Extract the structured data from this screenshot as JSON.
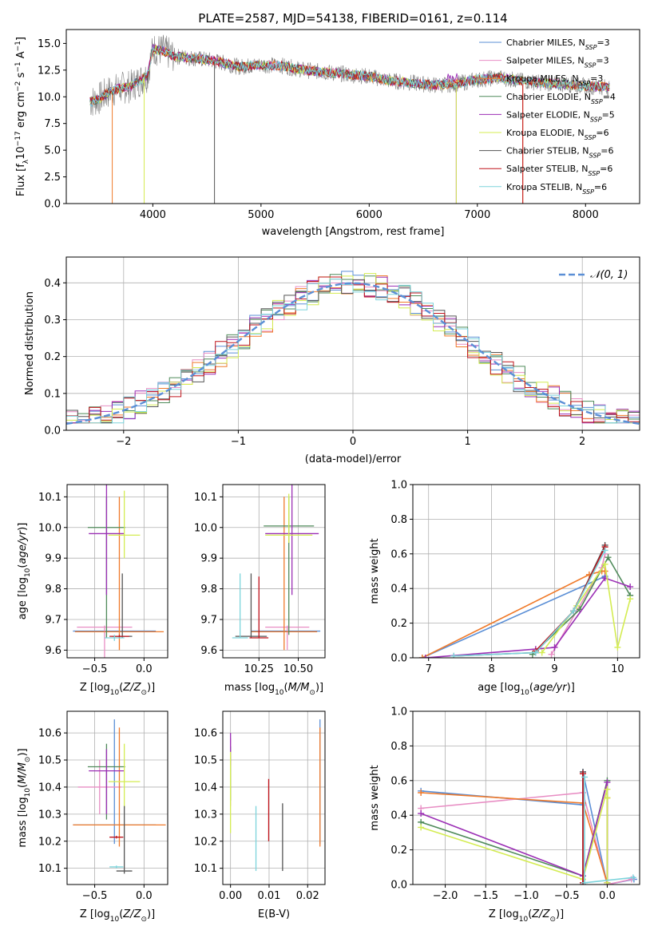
{
  "figure": {
    "title": "PLATE=2587, MJD=54138, FIBERID=0161, z=0.114"
  },
  "series_styles": [
    {
      "name": "Chabrier MILES",
      "nssp": "3",
      "color": "#5b8fd6"
    },
    {
      "name": "Salpeter MILES",
      "nssp": "3",
      "color": "#e88ec4"
    },
    {
      "name": "Kroupa MILES",
      "nssp": "3",
      "color": "#f07a2a"
    },
    {
      "name": "Chabrier ELODIE",
      "nssp": "4",
      "color": "#4f8a5a"
    },
    {
      "name": "Salpeter ELODIE",
      "nssp": "5",
      "color": "#9b2fb5"
    },
    {
      "name": "Kroupa ELODIE",
      "nssp": "6",
      "color": "#d4ec52"
    },
    {
      "name": "Chabrier STELIB",
      "nssp": "6",
      "color": "#555555"
    },
    {
      "name": "Salpeter STELIB",
      "nssp": "6",
      "color": "#c0141c"
    },
    {
      "name": "Kroupa STELIB",
      "nssp": "6",
      "color": "#7dd4dc"
    }
  ],
  "chart_data": [
    {
      "id": "spectrum",
      "type": "line",
      "xlabel": "wavelength [Angstrom, rest frame]",
      "ylabel": "Flux [f",
      "ylabel_unit": "10",
      "xlim": [
        3200,
        8500
      ],
      "ylim": [
        0,
        16.3
      ],
      "xticks": [
        "4000",
        "5000",
        "6000",
        "7000",
        "8000"
      ],
      "yticks": [
        "0.0",
        "2.5",
        "5.0",
        "7.5",
        "10.0",
        "12.5",
        "15.0"
      ],
      "legend_position": "top-right",
      "data_profile": {
        "x": [
          3420,
          3500,
          3600,
          3700,
          3800,
          3950,
          4000,
          4100,
          4200,
          4400,
          4600,
          4800,
          5000,
          5200,
          5400,
          5600,
          5800,
          6000,
          6200,
          6400,
          6600,
          6800,
          7000,
          7200,
          7400,
          7600,
          7800,
          8000,
          8200
        ],
        "y": [
          9.5,
          9.8,
          10.5,
          10.8,
          11.0,
          12.0,
          14.5,
          14.3,
          13.8,
          13.6,
          13.3,
          12.8,
          13.0,
          12.9,
          12.5,
          12.3,
          12.1,
          11.9,
          11.5,
          11.3,
          11.1,
          11.2,
          11.6,
          11.8,
          11.5,
          11.3,
          11.2,
          11.0,
          10.9
        ]
      }
    },
    {
      "id": "residuals",
      "type": "bar",
      "xlabel": "(data-model)/error",
      "ylabel": "Normed distribution",
      "xlim": [
        -2.5,
        2.5
      ],
      "ylim": [
        0,
        0.47
      ],
      "xticks": [
        "−2",
        "−1",
        "0",
        "1",
        "2"
      ],
      "yticks": [
        "0.0",
        "0.1",
        "0.2",
        "0.3",
        "0.4"
      ],
      "legend": "𝒩(0, 1)",
      "bin_width": 0.1,
      "profile": [
        0.035,
        0.04,
        0.045,
        0.05,
        0.055,
        0.06,
        0.07,
        0.08,
        0.09,
        0.1,
        0.112,
        0.125,
        0.138,
        0.152,
        0.167,
        0.182,
        0.198,
        0.214,
        0.23,
        0.246,
        0.262,
        0.278,
        0.293,
        0.307,
        0.32,
        0.332,
        0.343,
        0.353,
        0.362,
        0.37,
        0.377,
        0.383,
        0.388,
        0.392,
        0.395,
        0.397,
        0.398,
        0.398,
        0.397,
        0.395,
        0.392,
        0.388,
        0.383,
        0.377,
        0.37,
        0.362,
        0.353,
        0.343,
        0.332,
        0.32
      ]
    },
    {
      "id": "age_vs_Z",
      "type": "scatter",
      "xlabel": "Z [log",
      "ylabel": "age  [log",
      "xlim": [
        -0.78,
        0.24
      ],
      "ylim": [
        9.575,
        10.14
      ],
      "xticks": [
        "−0.5",
        "0.0"
      ],
      "yticks": [
        "9.6",
        "9.7",
        "9.8",
        "9.9",
        "10.0",
        "10.1"
      ],
      "points": [
        {
          "s": 0,
          "x": -0.3,
          "y": 9.662,
          "xerr": 0.42,
          "yerr": [
            9.66,
            9.66
          ]
        },
        {
          "s": 1,
          "x": -0.4,
          "y": 9.675,
          "xerr": 0.28,
          "yerr": [
            9.57,
            9.68
          ]
        },
        {
          "s": 2,
          "x": -0.25,
          "y": 9.66,
          "xerr": 0.45,
          "yerr": [
            9.6,
            10.1
          ]
        },
        {
          "s": 3,
          "x": -0.38,
          "y": 10.0,
          "xerr": 0.19,
          "yerr": [
            9.64,
            10.1
          ]
        },
        {
          "s": 4,
          "x": -0.38,
          "y": 9.98,
          "xerr": 0.18,
          "yerr": [
            9.78,
            10.14
          ]
        },
        {
          "s": 5,
          "x": -0.2,
          "y": 9.975,
          "xerr": 0.16,
          "yerr": [
            9.9,
            10.12
          ]
        },
        {
          "s": 6,
          "x": -0.22,
          "y": 9.645,
          "xerr": 0.1,
          "yerr": [
            9.64,
            9.85
          ]
        },
        {
          "s": 7,
          "x": -0.25,
          "y": 9.645,
          "xerr": 0.1,
          "yerr": [
            9.64,
            9.65
          ]
        },
        {
          "s": 8,
          "x": -0.3,
          "y": 9.64,
          "xerr": 0.1,
          "yerr": [
            9.63,
            9.65
          ]
        }
      ]
    },
    {
      "id": "age_vs_mass",
      "type": "scatter",
      "xlabel": "mass [log",
      "ylabel": "",
      "xlim": [
        10.02,
        10.67
      ],
      "ylim": [
        9.575,
        10.14
      ],
      "xticks": [
        "10.25",
        "10.50"
      ],
      "yticks": [
        "9.6",
        "9.7",
        "9.8",
        "9.9",
        "10.0",
        "10.1"
      ],
      "points": [
        {
          "s": 0,
          "x": 10.42,
          "y": 9.662,
          "xerr": 0.22,
          "yerr": [
            9.66,
            9.66
          ]
        },
        {
          "s": 1,
          "x": 10.43,
          "y": 9.675,
          "xerr": 0.14,
          "yerr": [
            9.6,
            9.68
          ]
        },
        {
          "s": 2,
          "x": 10.41,
          "y": 9.66,
          "xerr": 0.21,
          "yerr": [
            9.6,
            10.1
          ]
        },
        {
          "s": 3,
          "x": 10.44,
          "y": 10.005,
          "xerr": 0.16,
          "yerr": [
            9.65,
            10.1
          ]
        },
        {
          "s": 4,
          "x": 10.46,
          "y": 9.98,
          "xerr": 0.17,
          "yerr": [
            9.78,
            10.14
          ]
        },
        {
          "s": 5,
          "x": 10.44,
          "y": 9.975,
          "xerr": 0.15,
          "yerr": [
            9.95,
            10.11
          ]
        },
        {
          "s": 6,
          "x": 10.2,
          "y": 9.645,
          "xerr": 0.1,
          "yerr": [
            9.64,
            9.85
          ]
        },
        {
          "s": 7,
          "x": 10.25,
          "y": 9.64,
          "xerr": 0.06,
          "yerr": [
            9.64,
            9.84
          ]
        },
        {
          "s": 8,
          "x": 10.13,
          "y": 9.64,
          "xerr": 0.05,
          "yerr": [
            9.64,
            9.85
          ]
        }
      ]
    },
    {
      "id": "weight_vs_age",
      "type": "line",
      "xlabel": "age  [log",
      "ylabel": "mass weight",
      "xlim": [
        6.75,
        10.35
      ],
      "ylim": [
        0,
        1.0
      ],
      "xticks": [
        "7",
        "8",
        "9",
        "10"
      ],
      "yticks": [
        "0.0",
        "0.2",
        "0.4",
        "0.6",
        "0.8",
        "1.0"
      ],
      "series": [
        {
          "s": 0,
          "x": [
            6.9,
            9.8,
            9.8
          ],
          "y": [
            0.0,
            0.47,
            0.47
          ]
        },
        {
          "s": 1,
          "x": [
            8.95,
            9.75,
            9.8
          ],
          "y": [
            0.02,
            0.52,
            0.6
          ]
        },
        {
          "s": 2,
          "x": [
            6.9,
            9.55,
            9.75,
            9.8
          ],
          "y": [
            0.0,
            0.48,
            0.5,
            0.5
          ]
        },
        {
          "s": 3,
          "x": [
            8.65,
            9.4,
            9.85,
            10.2
          ],
          "y": [
            0.02,
            0.28,
            0.58,
            0.36
          ]
        },
        {
          "s": 4,
          "x": [
            6.95,
            8.7,
            9.0,
            9.8,
            10.2
          ],
          "y": [
            0.0,
            0.05,
            0.06,
            0.46,
            0.41
          ]
        },
        {
          "s": 5,
          "x": [
            8.8,
            9.35,
            9.8,
            10.0,
            10.2
          ],
          "y": [
            0.03,
            0.3,
            0.54,
            0.06,
            0.34
          ]
        },
        {
          "s": 6,
          "x": [
            7.4,
            8.7,
            9.3,
            9.8
          ],
          "y": [
            0.01,
            0.03,
            0.27,
            0.65
          ]
        },
        {
          "s": 7,
          "x": [
            8.7,
            9.3,
            9.8
          ],
          "y": [
            0.04,
            0.27,
            0.64
          ]
        },
        {
          "s": 8,
          "x": [
            7.4,
            8.7,
            9.3,
            9.8
          ],
          "y": [
            0.01,
            0.03,
            0.27,
            0.62
          ]
        }
      ]
    },
    {
      "id": "mass_vs_Z",
      "type": "scatter",
      "xlabel": "Z [log",
      "ylabel": "mass [log",
      "xlim": [
        -0.78,
        0.24
      ],
      "ylim": [
        10.04,
        10.68
      ],
      "xticks": [
        "−0.5",
        "0.0"
      ],
      "yticks": [
        "10.1",
        "10.2",
        "10.3",
        "10.4",
        "10.5",
        "10.6"
      ],
      "points": [
        {
          "s": 0,
          "x": -0.3,
          "y": 10.26,
          "xerr": 0.42,
          "yerr": [
            10.19,
            10.65
          ]
        },
        {
          "s": 1,
          "x": -0.45,
          "y": 10.4,
          "xerr": 0.22,
          "yerr": [
            10.3,
            10.5
          ]
        },
        {
          "s": 2,
          "x": -0.25,
          "y": 10.26,
          "xerr": 0.47,
          "yerr": [
            10.18,
            10.62
          ]
        },
        {
          "s": 3,
          "x": -0.38,
          "y": 10.475,
          "xerr": 0.19,
          "yerr": [
            10.28,
            10.56
          ]
        },
        {
          "s": 4,
          "x": -0.38,
          "y": 10.46,
          "xerr": 0.18,
          "yerr": [
            10.3,
            10.54
          ]
        },
        {
          "s": 5,
          "x": -0.2,
          "y": 10.42,
          "xerr": 0.16,
          "yerr": [
            10.32,
            10.56
          ]
        },
        {
          "s": 6,
          "x": -0.2,
          "y": 10.09,
          "xerr": 0.08,
          "yerr": [
            10.08,
            10.33
          ]
        },
        {
          "s": 7,
          "x": -0.28,
          "y": 10.215,
          "xerr": 0.07,
          "yerr": [
            10.21,
            10.22
          ]
        },
        {
          "s": 8,
          "x": -0.28,
          "y": 10.105,
          "xerr": 0.07,
          "yerr": [
            10.1,
            10.11
          ]
        }
      ]
    },
    {
      "id": "mass_vs_ebv",
      "type": "scatter",
      "xlabel": "E(B-V)",
      "ylabel": "",
      "xlim": [
        -0.002,
        0.0245
      ],
      "ylim": [
        10.04,
        10.68
      ],
      "xticks": [
        "0.00",
        "0.01",
        "0.02"
      ],
      "yticks": [
        "10.1",
        "10.2",
        "10.3",
        "10.4",
        "10.5",
        "10.6"
      ],
      "points": [
        {
          "s": 0,
          "x": 0.0232,
          "y": 10.4,
          "xerr": 0,
          "yerr": [
            10.19,
            10.65
          ]
        },
        {
          "s": 1,
          "x": 0.0,
          "y": 10.45,
          "xerr": 0,
          "yerr": [
            10.33,
            10.58
          ]
        },
        {
          "s": 2,
          "x": 0.0232,
          "y": 10.4,
          "xerr": 0,
          "yerr": [
            10.18,
            10.62
          ]
        },
        {
          "s": 3,
          "x": 0.0,
          "y": 10.5,
          "xerr": 0,
          "yerr": [
            10.35,
            10.55
          ]
        },
        {
          "s": 4,
          "x": 0.0,
          "y": 10.54,
          "xerr": 0,
          "yerr": [
            10.48,
            10.6
          ]
        },
        {
          "s": 5,
          "x": 0.0,
          "y": 10.4,
          "xerr": 0,
          "yerr": [
            10.23,
            10.53
          ]
        },
        {
          "s": 6,
          "x": 0.0135,
          "y": 10.22,
          "xerr": 0,
          "yerr": [
            10.09,
            10.34
          ]
        },
        {
          "s": 7,
          "x": 0.0099,
          "y": 10.3,
          "xerr": 0,
          "yerr": [
            10.2,
            10.43
          ]
        },
        {
          "s": 8,
          "x": 0.0066,
          "y": 10.21,
          "xerr": 0,
          "yerr": [
            10.09,
            10.33
          ]
        }
      ]
    },
    {
      "id": "weight_vs_Z",
      "type": "line",
      "xlabel": "Z [log",
      "ylabel": "mass weight",
      "xlim": [
        -2.4,
        0.4
      ],
      "ylim": [
        0,
        1.0
      ],
      "xticks": [
        "−2.0",
        "−1.5",
        "−1.0",
        "−0.5",
        "0.0"
      ],
      "yticks": [
        "0.0",
        "0.2",
        "0.4",
        "0.6",
        "0.8",
        "1.0"
      ],
      "series": [
        {
          "s": 0,
          "x": [
            -2.3,
            -0.3,
            -0.3,
            0.0,
            0.33
          ],
          "y": [
            0.54,
            0.46,
            0.65,
            0.0,
            0.03
          ]
        },
        {
          "s": 1,
          "x": [
            -2.3,
            -0.3,
            0.0,
            0.3
          ],
          "y": [
            0.44,
            0.53,
            0.0,
            0.03
          ]
        },
        {
          "s": 2,
          "x": [
            -2.3,
            -0.3,
            0.0,
            0.0
          ],
          "y": [
            0.53,
            0.47,
            0.01,
            0.5
          ]
        },
        {
          "s": 3,
          "x": [
            -2.3,
            -0.3,
            0.0,
            0.0
          ],
          "y": [
            0.36,
            0.05,
            0.6,
            0.01
          ]
        },
        {
          "s": 4,
          "x": [
            -2.3,
            -0.3,
            0.0,
            0.0
          ],
          "y": [
            0.41,
            0.05,
            0.59,
            0.01
          ]
        },
        {
          "s": 5,
          "x": [
            -2.3,
            -0.3,
            0.0,
            0.0,
            0.0
          ],
          "y": [
            0.33,
            0.03,
            0.55,
            0.01,
            0.5
          ]
        },
        {
          "s": 6,
          "x": [
            -0.3,
            -0.3
          ],
          "y": [
            0.65,
            0.0
          ]
        },
        {
          "s": 7,
          "x": [
            -0.3,
            -0.3
          ],
          "y": [
            0.64,
            0.01
          ]
        },
        {
          "s": 8,
          "x": [
            -0.28,
            -0.28,
            0.32
          ],
          "y": [
            0.62,
            0.01,
            0.04
          ]
        }
      ]
    }
  ]
}
